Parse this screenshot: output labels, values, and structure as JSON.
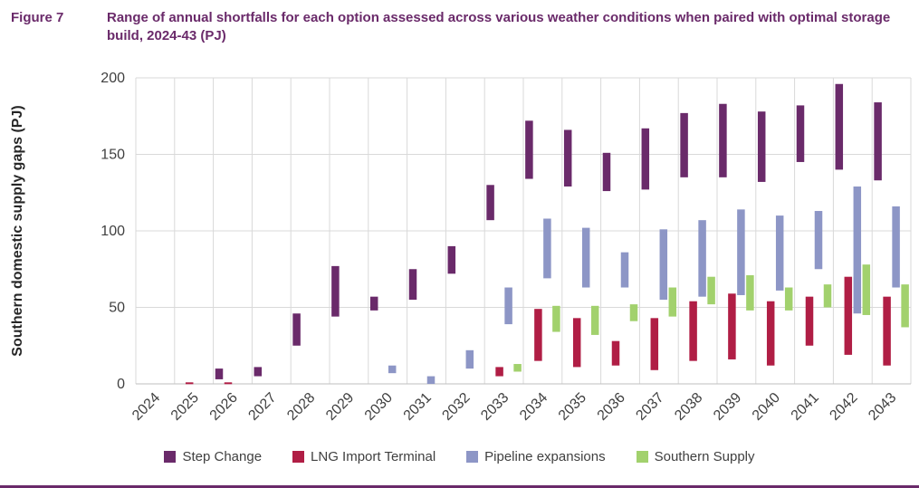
{
  "page": {
    "background": "#ffffff",
    "accent_color": "#6A2A6A"
  },
  "figure": {
    "label": "Figure 7",
    "title": "Range of annual shortfalls for each option assessed across various weather conditions when paired with optimal storage build, 2024-43 (PJ)"
  },
  "chart_data": {
    "type": "bar",
    "subtype": "floating_range_bars",
    "title": "Range of annual shortfalls for each option assessed across various weather conditions when paired with optimal storage build, 2024-43 (PJ)",
    "xlabel": "",
    "ylabel": "Southern domestic supply gaps (PJ)",
    "ylim": [
      0,
      200
    ],
    "yticks": [
      0,
      50,
      100,
      150,
      200
    ],
    "grid": true,
    "gridline_color": "#D9D9D9",
    "axis_text_color": "#404040",
    "legend_position": "bottom",
    "categories": [
      "2024",
      "2025",
      "2026",
      "2027",
      "2028",
      "2029",
      "2030",
      "2031",
      "2032",
      "2033",
      "2034",
      "2035",
      "2036",
      "2037",
      "2038",
      "2039",
      "2040",
      "2041",
      "2042",
      "2043"
    ],
    "series": [
      {
        "name": "Step Change",
        "color": "#6A2A6A",
        "ranges": [
          null,
          null,
          [
            3,
            10
          ],
          [
            5,
            11
          ],
          [
            25,
            46
          ],
          [
            44,
            77
          ],
          [
            48,
            57
          ],
          [
            55,
            75
          ],
          [
            72,
            90
          ],
          [
            107,
            130
          ],
          [
            134,
            172
          ],
          [
            129,
            166
          ],
          [
            126,
            151
          ],
          [
            127,
            167
          ],
          [
            135,
            177
          ],
          [
            135,
            183
          ],
          [
            132,
            178
          ],
          [
            145,
            182
          ],
          [
            140,
            196
          ],
          [
            133,
            184
          ]
        ]
      },
      {
        "name": "LNG Import Terminal",
        "color": "#B01E45",
        "ranges": [
          null,
          [
            0,
            1
          ],
          [
            0,
            1
          ],
          null,
          null,
          null,
          null,
          null,
          null,
          [
            5,
            11
          ],
          [
            15,
            49
          ],
          [
            11,
            43
          ],
          [
            12,
            28
          ],
          [
            9,
            43
          ],
          [
            15,
            54
          ],
          [
            16,
            59
          ],
          [
            12,
            54
          ],
          [
            25,
            57
          ],
          [
            19,
            70
          ],
          [
            12,
            57
          ]
        ]
      },
      {
        "name": "Pipeline expansions",
        "color": "#8D96C6",
        "ranges": [
          null,
          null,
          null,
          null,
          null,
          null,
          [
            7,
            12
          ],
          [
            0,
            5
          ],
          [
            10,
            22
          ],
          [
            39,
            63
          ],
          [
            69,
            108
          ],
          [
            63,
            102
          ],
          [
            63,
            86
          ],
          [
            55,
            101
          ],
          [
            57,
            107
          ],
          [
            58,
            114
          ],
          [
            61,
            110
          ],
          [
            75,
            113
          ],
          [
            46,
            129
          ],
          [
            63,
            116
          ]
        ]
      },
      {
        "name": "Southern Supply",
        "color": "#A2D16D",
        "ranges": [
          null,
          null,
          null,
          null,
          null,
          null,
          null,
          null,
          null,
          [
            8,
            13
          ],
          [
            34,
            51
          ],
          [
            32,
            51
          ],
          [
            41,
            52
          ],
          [
            44,
            63
          ],
          [
            52,
            70
          ],
          [
            48,
            71
          ],
          [
            48,
            63
          ],
          [
            50,
            65
          ],
          [
            45,
            78
          ],
          [
            37,
            65
          ]
        ]
      }
    ]
  }
}
